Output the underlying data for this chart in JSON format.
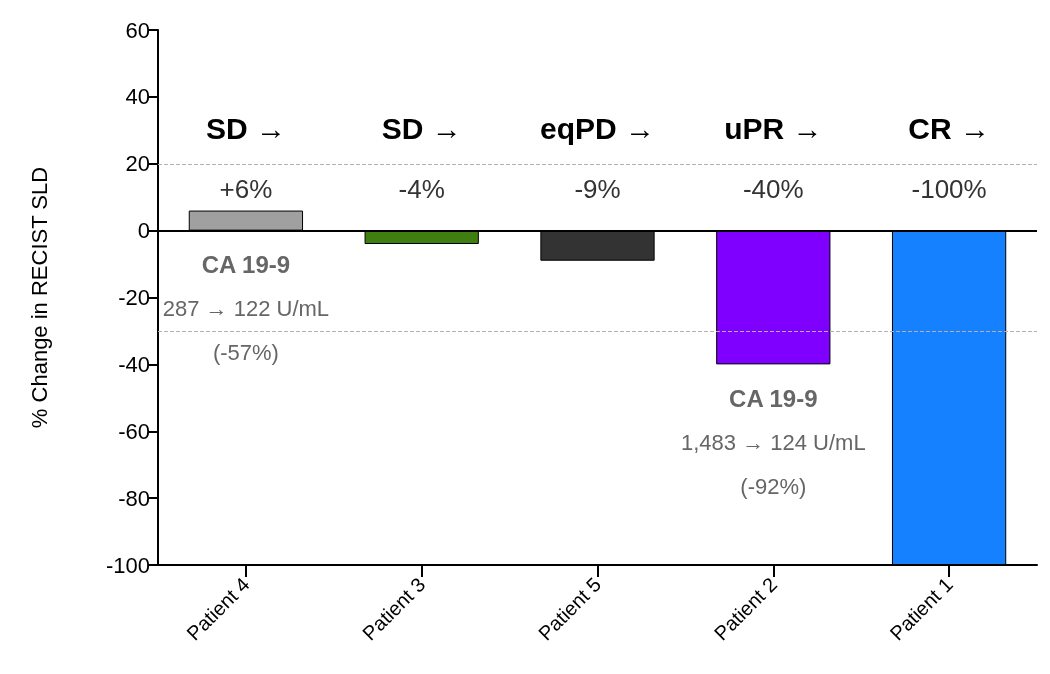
{
  "chart_data": {
    "type": "bar",
    "ylabel": "% Change in RECIST SLD",
    "categories": [
      "Patient 4",
      "Patient 3",
      "Patient 5",
      "Patient 2",
      "Patient 1"
    ],
    "values": [
      6,
      -4,
      -9,
      -40,
      -100
    ],
    "colors": [
      "#a0a0a0",
      "#3f7f12",
      "#333333",
      "#7f00ff",
      "#1681ff"
    ],
    "value_labels": [
      "+6%",
      "-4%",
      "-9%",
      "-40%",
      "-100%"
    ],
    "ylim": [
      -100,
      60
    ],
    "yticks": [
      -100,
      -80,
      -60,
      -40,
      -20,
      0,
      20,
      40,
      60
    ],
    "ref_lines": [
      {
        "axis": "y",
        "value": 20,
        "color": "#b0b0b0",
        "line_style": "dashed"
      },
      {
        "axis": "y",
        "value": -30,
        "color": "#b0b0b0",
        "line_style": "dashed"
      },
      {
        "axis": "y",
        "value": 0,
        "color": "#000000",
        "line_style": "solid"
      }
    ],
    "annotations": [
      "SD →",
      "SD →",
      "eqPD →",
      "uPR →",
      "CR →",
      "CA 19-9",
      "287 → 122 U/mL",
      "(-57%)",
      "CA 19-9",
      "1,483 → 124 U/mL",
      "(-92%)"
    ],
    "grid": false
  }
}
